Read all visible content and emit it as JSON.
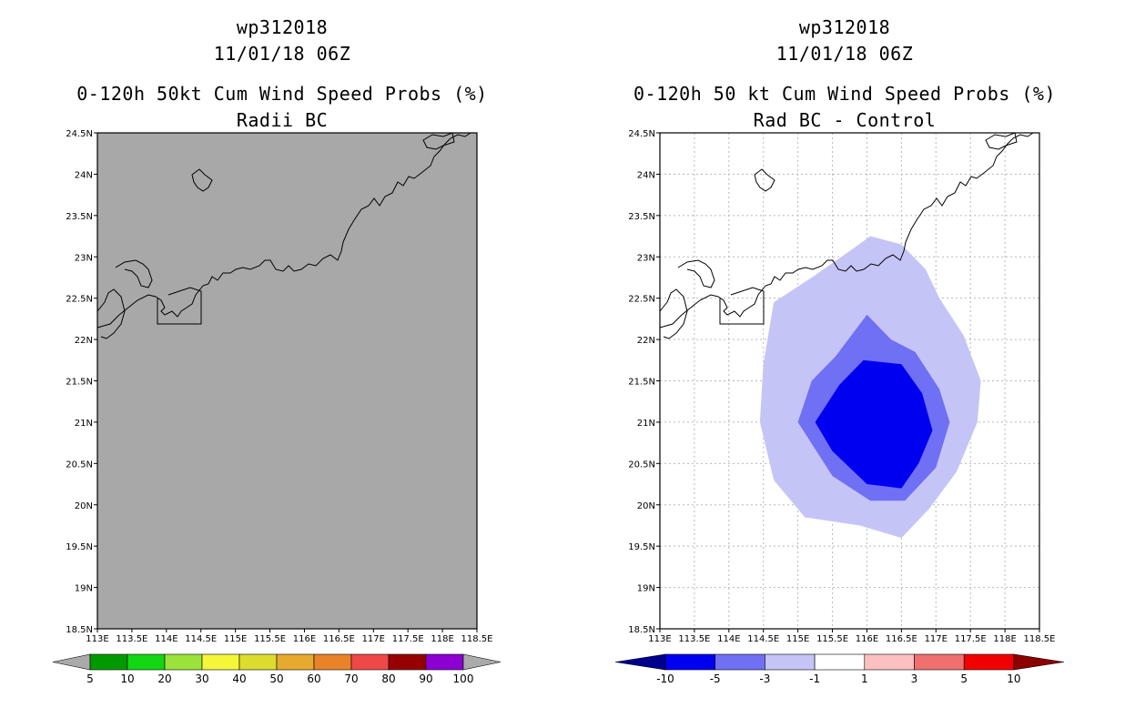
{
  "left_panel": {
    "storm_id": "wp312018",
    "datetime": "11/01/18 06Z",
    "title": "0-120h 50kt Cum Wind Speed Probs (%)",
    "subtitle": "Radii BC",
    "map_fill": "#a8a8a8",
    "colorbar": {
      "labels": [
        "5",
        "10",
        "20",
        "30",
        "40",
        "50",
        "60",
        "70",
        "80",
        "90",
        "100"
      ],
      "colors": [
        "#009a00",
        "#13d713",
        "#9be33a",
        "#f5f53a",
        "#dcdc2e",
        "#e6aa2e",
        "#ea822a",
        "#f04848",
        "#960000",
        "#8c00d2"
      ],
      "end_color": "#aaaaaa"
    }
  },
  "right_panel": {
    "storm_id": "wp312018",
    "datetime": "11/01/18 06Z",
    "title": "0-120h 50 kt Cum Wind Speed Probs (%)",
    "subtitle": "Rad BC - Control",
    "colorbar": {
      "labels": [
        "-10",
        "-5",
        "-3",
        "-1",
        "1",
        "3",
        "5",
        "10"
      ],
      "colors": [
        "#0000f0",
        "#7070f4",
        "#c4c4f6",
        "#ffffff",
        "#fcc0c0",
        "#f07070",
        "#f00000"
      ],
      "low_end_color": "#00008c",
      "high_end_color": "#8c0000"
    },
    "contours": [
      {
        "level": "-1 to -3",
        "color": "#c4c4f6",
        "lonlat": [
          [
            114.65,
            22.45
          ],
          [
            115.2,
            22.75
          ],
          [
            115.8,
            23.1
          ],
          [
            116.05,
            23.25
          ],
          [
            116.5,
            23.15
          ],
          [
            116.85,
            22.85
          ],
          [
            117.05,
            22.5
          ],
          [
            117.4,
            22.05
          ],
          [
            117.65,
            21.5
          ],
          [
            117.6,
            21.0
          ],
          [
            117.3,
            20.4
          ],
          [
            116.9,
            19.95
          ],
          [
            116.5,
            19.6
          ],
          [
            115.9,
            19.75
          ],
          [
            115.1,
            19.85
          ],
          [
            114.65,
            20.3
          ],
          [
            114.45,
            21.0
          ],
          [
            114.5,
            21.7
          ]
        ]
      },
      {
        "level": "-3 to -5",
        "color": "#7070f4",
        "lonlat": [
          [
            115.55,
            21.8
          ],
          [
            116.0,
            22.3
          ],
          [
            116.35,
            22.0
          ],
          [
            116.7,
            21.85
          ],
          [
            117.05,
            21.4
          ],
          [
            117.2,
            21.0
          ],
          [
            117.0,
            20.45
          ],
          [
            116.55,
            20.05
          ],
          [
            116.05,
            20.05
          ],
          [
            115.5,
            20.35
          ],
          [
            115.0,
            21.0
          ],
          [
            115.2,
            21.5
          ]
        ]
      },
      {
        "level": "< -5",
        "color": "#0000f0",
        "lonlat": [
          [
            115.95,
            21.75
          ],
          [
            116.5,
            21.7
          ],
          [
            116.8,
            21.35
          ],
          [
            116.95,
            20.9
          ],
          [
            116.75,
            20.5
          ],
          [
            116.5,
            20.2
          ],
          [
            116.0,
            20.25
          ],
          [
            115.5,
            20.65
          ],
          [
            115.25,
            21.0
          ],
          [
            115.6,
            21.45
          ]
        ]
      }
    ]
  },
  "map": {
    "lat_labels": [
      "24.5N",
      "24N",
      "23.5N",
      "23N",
      "22.5N",
      "22N",
      "21.5N",
      "21N",
      "20.5N",
      "20N",
      "19.5N",
      "19N",
      "18.5N"
    ],
    "lon_labels": [
      "113E",
      "113.5E",
      "114E",
      "114.5E",
      "115E",
      "115.5E",
      "116E",
      "116.5E",
      "117E",
      "117.5E",
      "118E",
      "118.5E"
    ],
    "lon_range": [
      113,
      118.5
    ],
    "lat_range": [
      18.5,
      24.5
    ]
  }
}
